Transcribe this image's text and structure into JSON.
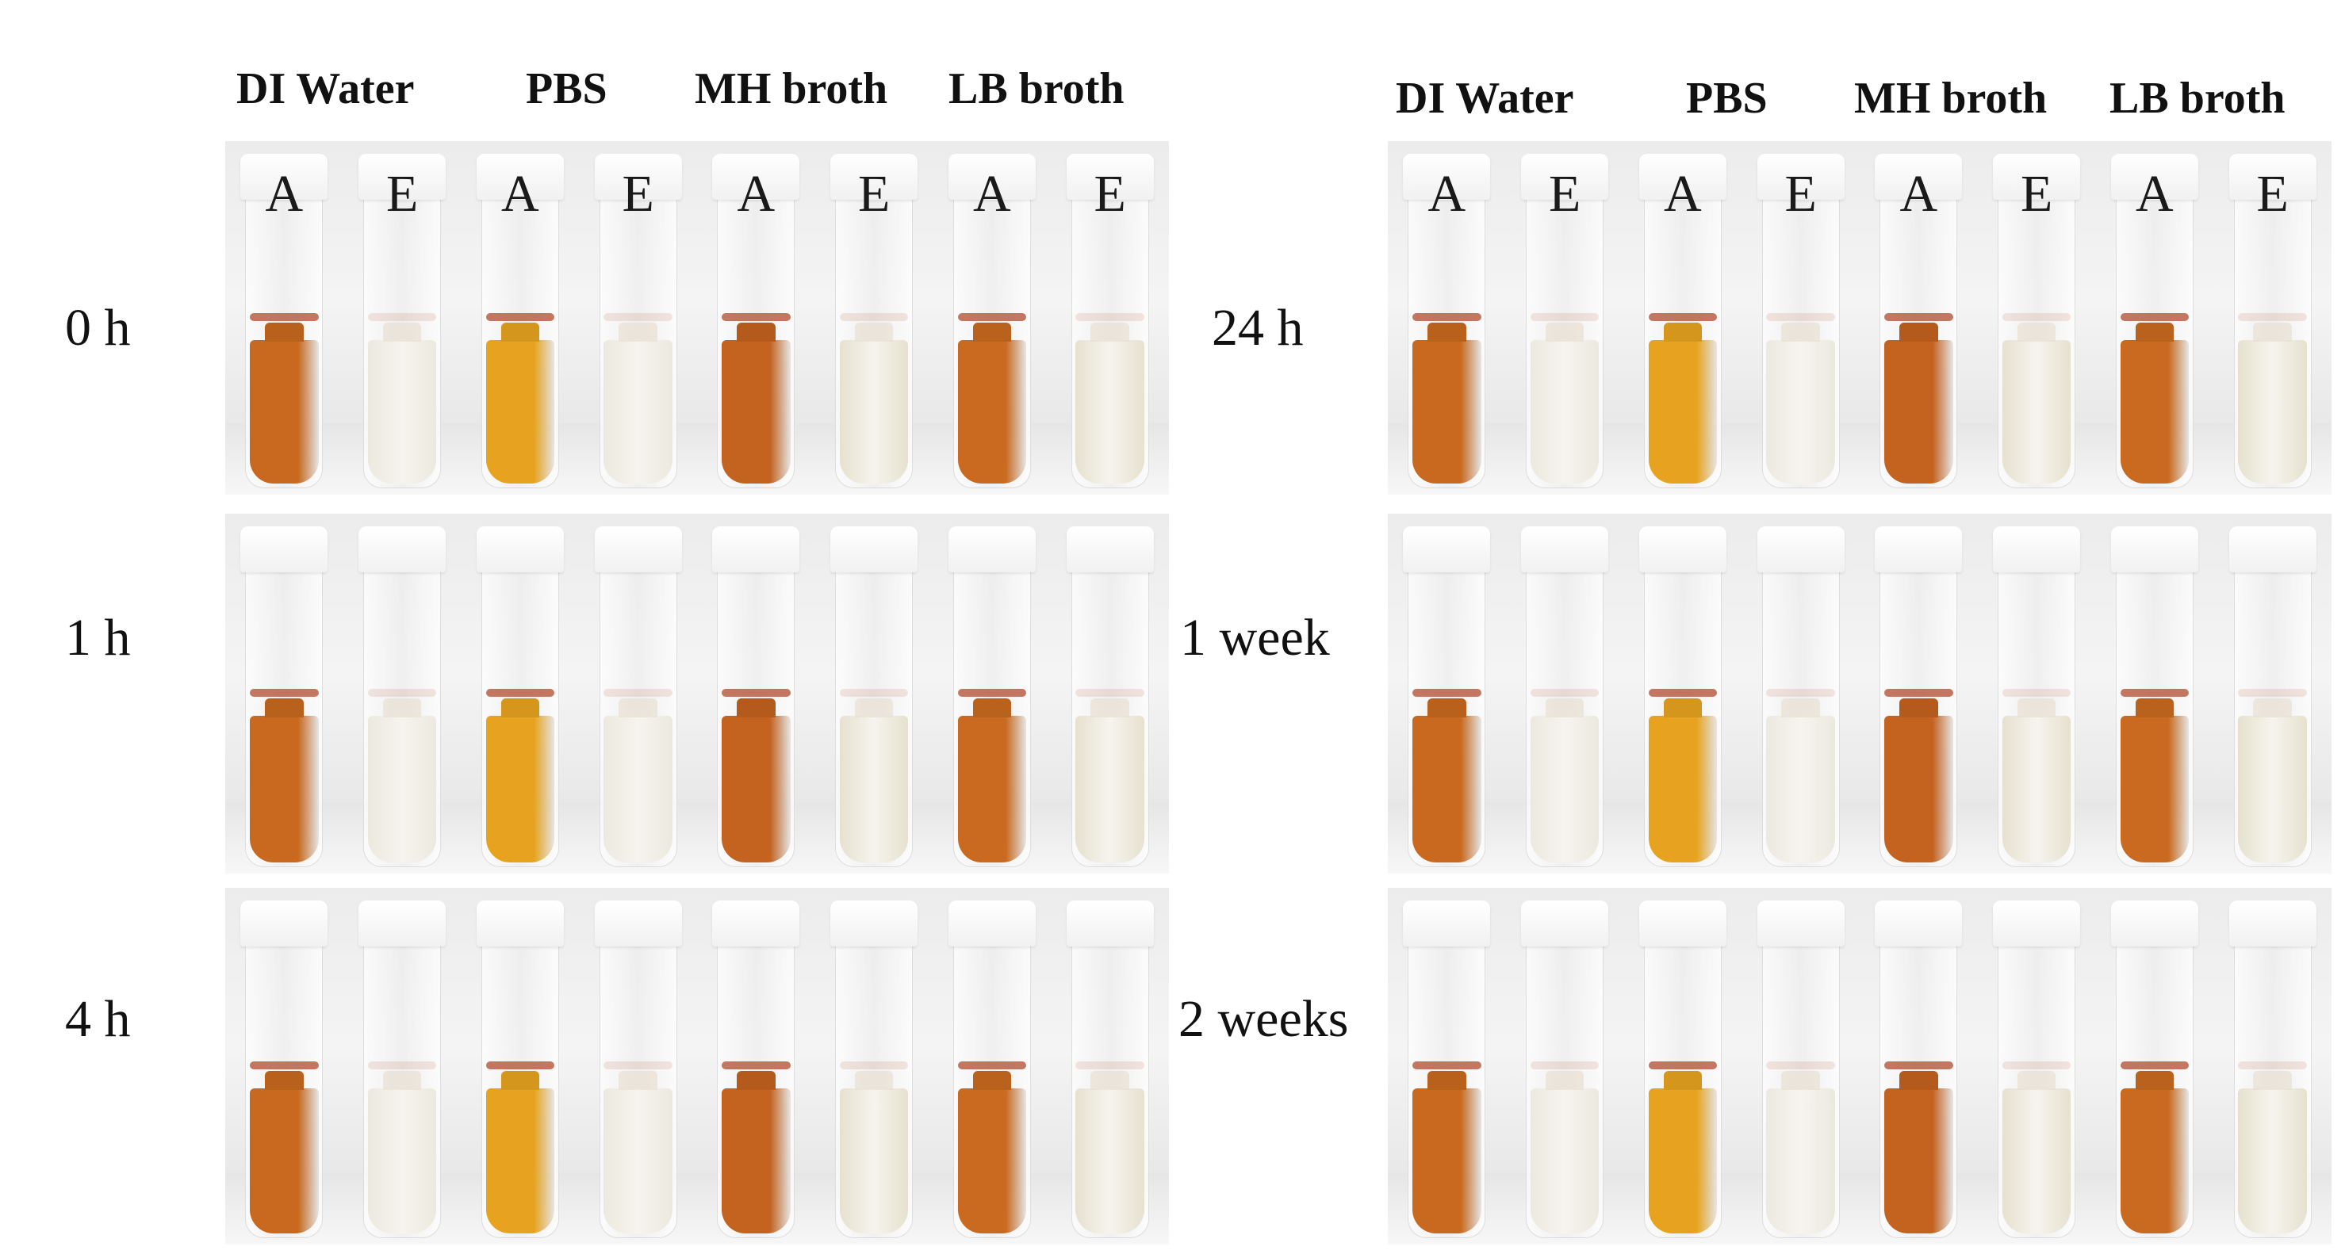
{
  "colors": {
    "A_water": "#c8691f",
    "A_pbs": "#e7a31f",
    "A_mh": "#c4621f",
    "A_lb": "#c96a20",
    "E_clear": "#ece9df",
    "E_broth": "#e6e1cf",
    "residue": "#b5563a"
  },
  "left": {
    "headers": [
      "DI Water",
      "PBS",
      "MH broth",
      "LB broth"
    ],
    "rows": [
      {
        "time": "0 h",
        "letters": [
          "A",
          "E",
          "A",
          "E",
          "A",
          "E",
          "A",
          "E"
        ]
      },
      {
        "time": "1 h",
        "letters": [
          "",
          "",
          "",
          "",
          "",
          "",
          "",
          ""
        ]
      },
      {
        "time": "4 h",
        "letters": [
          "",
          "",
          "",
          "",
          "",
          "",
          "",
          ""
        ]
      }
    ]
  },
  "right": {
    "headers": [
      "DI Water",
      "PBS",
      "MH broth",
      "LB broth"
    ],
    "rows": [
      {
        "time": "24 h",
        "letters": [
          "A",
          "E",
          "A",
          "E",
          "A",
          "E",
          "A",
          "E"
        ]
      },
      {
        "time": "1 week",
        "letters": [
          "",
          "",
          "",
          "",
          "",
          "",
          "",
          ""
        ]
      },
      {
        "time": "2 weeks",
        "letters": [
          "",
          "",
          "",
          "",
          "",
          "",
          "",
          ""
        ]
      }
    ]
  }
}
